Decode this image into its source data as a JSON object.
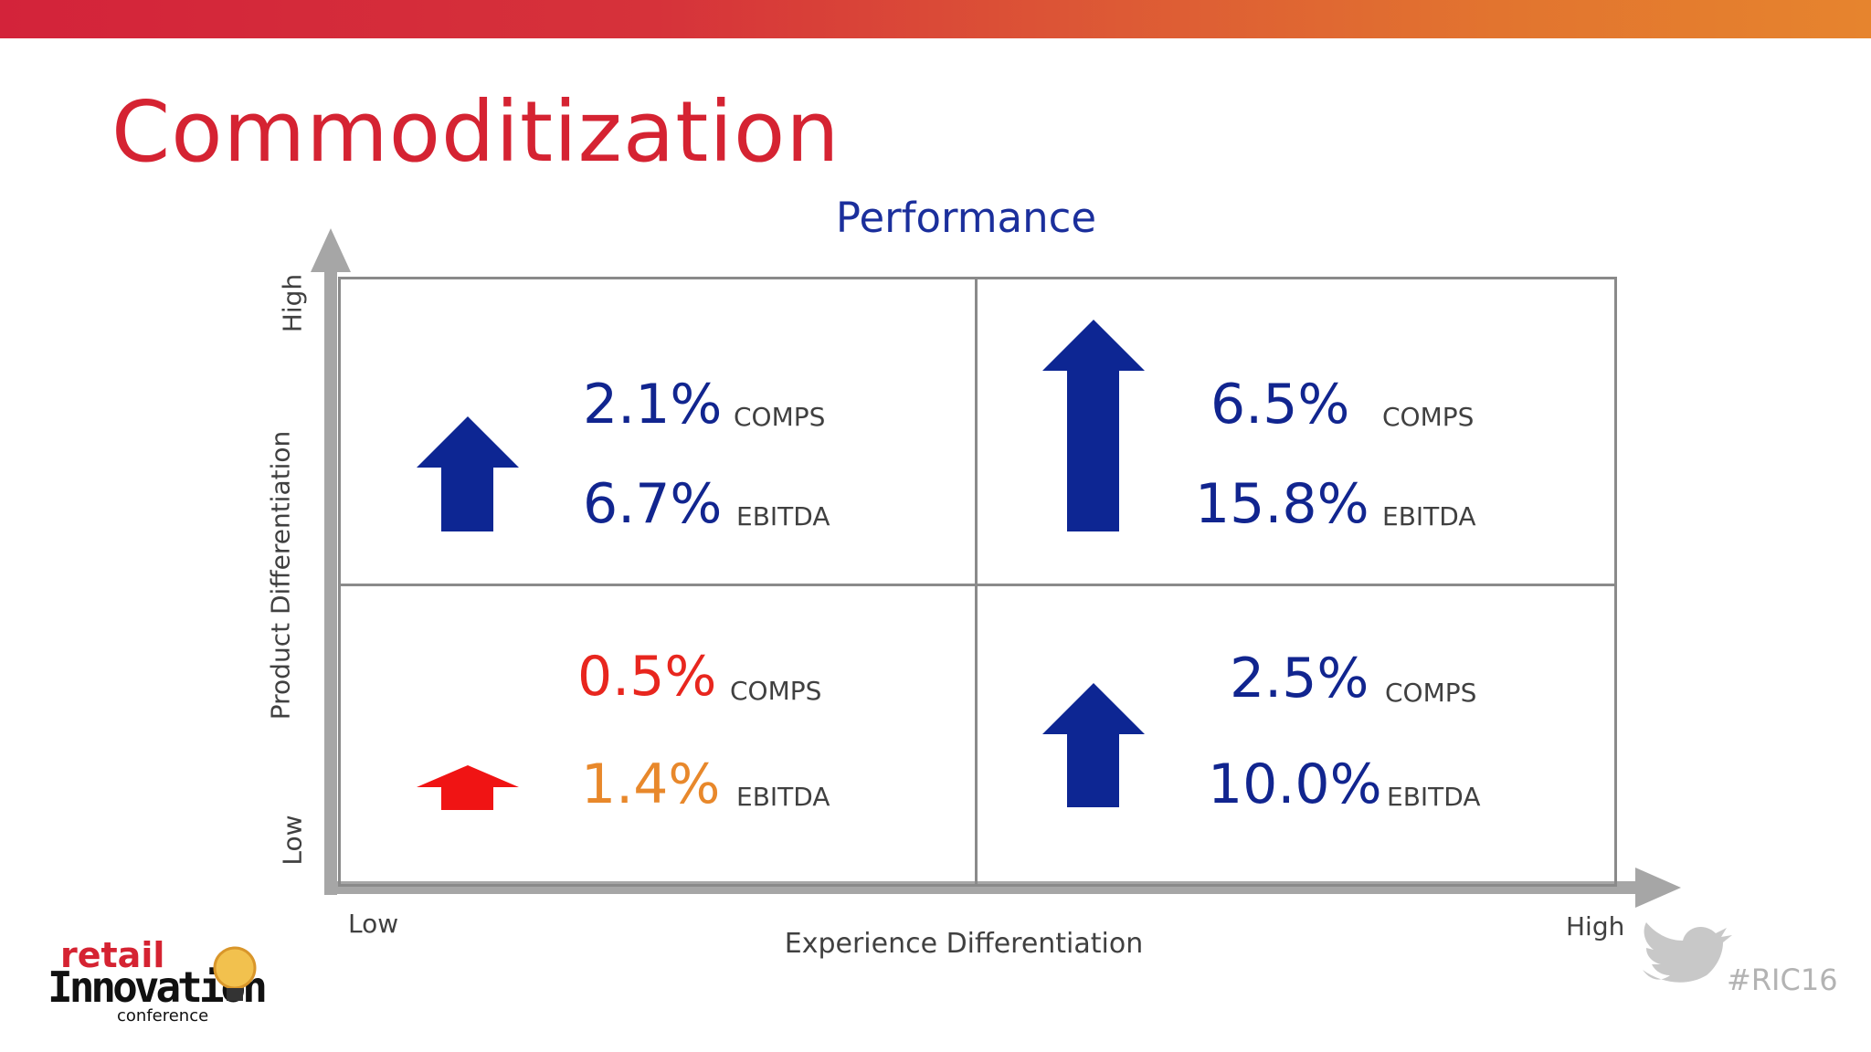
{
  "title": "Commoditization",
  "chart_title": "Performance",
  "y_axis": {
    "label": "Product Differentiation",
    "high": "High",
    "low": "Low"
  },
  "x_axis": {
    "label": "Experience Differentiation",
    "low": "Low",
    "high": "High"
  },
  "quadrants": {
    "top_left": {
      "comps": "2.1%",
      "ebitda": "6.7%",
      "comps_label": "COMPS",
      "ebitda_label": "EBITDA"
    },
    "top_right": {
      "comps": "6.5%",
      "ebitda": "15.8%",
      "comps_label": "COMPS",
      "ebitda_label": "EBITDA"
    },
    "bottom_left": {
      "comps": "0.5%",
      "ebitda": "1.4%",
      "comps_label": "COMPS",
      "ebitda_label": "EBITDA"
    },
    "bottom_right": {
      "comps": "2.5%",
      "ebitda": "10.0%",
      "comps_label": "COMPS",
      "ebitda_label": "EBITDA"
    }
  },
  "colors": {
    "blue": "#11258f",
    "red": "#e8261e",
    "orange": "#e8882b",
    "title_red": "#d52332"
  },
  "logo": {
    "line1": "retail",
    "line2": "Innovation",
    "line3": "conference"
  },
  "hashtag": "#RIC16"
}
